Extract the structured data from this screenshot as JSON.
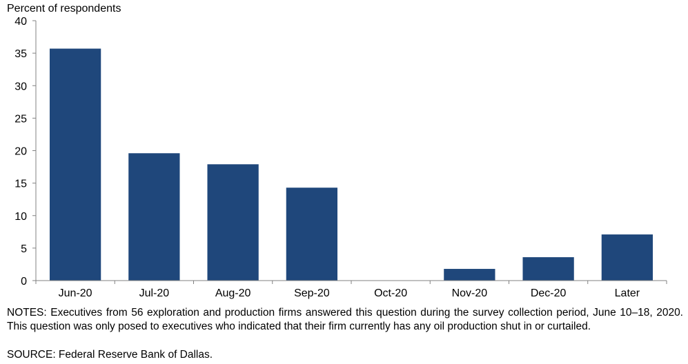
{
  "chart_data": {
    "type": "bar",
    "ylabel": "Percent of respondents",
    "categories": [
      "Jun-20",
      "Jul-20",
      "Aug-20",
      "Sep-20",
      "Oct-20",
      "Nov-20",
      "Dec-20",
      "Later"
    ],
    "values": [
      35.7,
      19.6,
      17.9,
      14.3,
      0,
      1.8,
      3.6,
      7.1
    ],
    "ylim": [
      0,
      40
    ],
    "yticks": [
      0,
      5,
      10,
      15,
      20,
      25,
      30,
      35,
      40
    ],
    "ytick_labels": [
      "0",
      "5",
      "10",
      "15",
      "20",
      "25",
      "30",
      "35",
      "40"
    ],
    "grid": false,
    "legend": "none",
    "bar_color": "#1F477B"
  },
  "notes": "NOTES: Executives from 56 exploration and production firms answered this question during the survey collection period, June 10–18, 2020. This question was only posed to executives who indicated that their firm currently has any oil production shut in or curtailed.",
  "source": "SOURCE: Federal Reserve Bank of Dallas."
}
